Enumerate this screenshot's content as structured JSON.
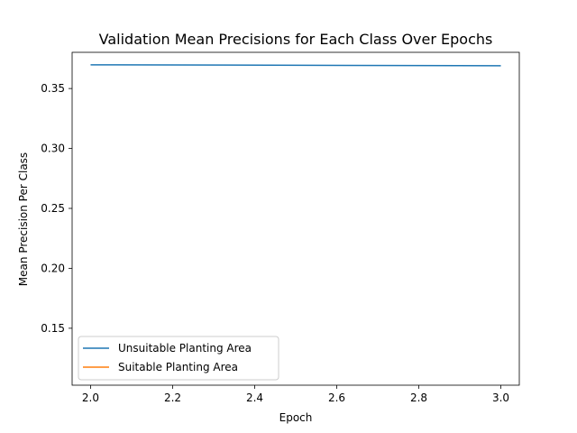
{
  "chart_data": {
    "type": "line",
    "title": "Validation Mean Precisions for Each Class Over Epochs",
    "xlabel": "Epoch",
    "ylabel": "Mean Precision Per Class",
    "xlim": [
      1.955,
      3.045
    ],
    "ylim": [
      0.1025,
      0.3802
    ],
    "xticks": [
      2.0,
      2.2,
      2.4,
      2.6,
      2.8,
      3.0
    ],
    "xtick_labels": [
      "2.0",
      "2.2",
      "2.4",
      "2.6",
      "2.8",
      "3.0"
    ],
    "yticks": [
      0.15,
      0.2,
      0.25,
      0.3,
      0.35
    ],
    "ytick_labels": [
      "0.15",
      "0.20",
      "0.25",
      "0.30",
      "0.35"
    ],
    "grid": false,
    "legend_position": "lower-left",
    "series": [
      {
        "name": "Unsuitable Planting Area",
        "color": "#1f77b4",
        "x": [
          2,
          3
        ],
        "y": [
          0.3698,
          0.369
        ]
      },
      {
        "name": "Suitable Planting Area",
        "color": "#ff7f0e",
        "x": [
          2,
          3
        ],
        "y": [
          null,
          null
        ]
      }
    ]
  }
}
